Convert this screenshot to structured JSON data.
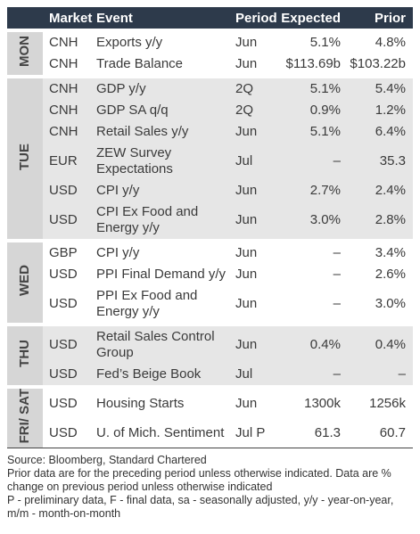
{
  "header": [
    "Market",
    "Event",
    "Period",
    "Expected",
    "Prior"
  ],
  "groups": [
    {
      "day": "MON",
      "rows": [
        [
          "CNH",
          "Exports y/y",
          "Jun",
          "5.1%",
          "4.8%"
        ],
        [
          "CNH",
          "Trade Balance",
          "Jun",
          "$113.69b",
          "$103.22b"
        ]
      ]
    },
    {
      "day": "TUE",
      "rows": [
        [
          "CNH",
          "GDP y/y",
          "2Q",
          "5.1%",
          "5.4%"
        ],
        [
          "CNH",
          "GDP SA q/q",
          "2Q",
          "0.9%",
          "1.2%"
        ],
        [
          "CNH",
          "Retail Sales y/y",
          "Jun",
          "5.1%",
          "6.4%"
        ],
        [
          "EUR",
          "ZEW Survey Expectations",
          "Jul",
          "–",
          "35.3"
        ],
        [
          "USD",
          "CPI y/y",
          "Jun",
          "2.7%",
          "2.4%"
        ],
        [
          "USD",
          "CPI Ex Food and Energy y/y",
          "Jun",
          "3.0%",
          "2.8%"
        ]
      ]
    },
    {
      "day": "WED",
      "rows": [
        [
          "GBP",
          "CPI y/y",
          "Jun",
          "–",
          "3.4%"
        ],
        [
          "USD",
          "PPI Final Demand y/y",
          "Jun",
          "–",
          "2.6%"
        ],
        [
          "USD",
          "PPI Ex Food and Energy y/y",
          "Jun",
          "–",
          "3.0%"
        ]
      ]
    },
    {
      "day": "THU",
      "rows": [
        [
          "USD",
          "Retail Sales Control Group",
          "Jun",
          "0.4%",
          "0.4%"
        ],
        [
          "USD",
          "Fed’s Beige Book",
          "Jul",
          "–",
          "–"
        ]
      ]
    },
    {
      "day": "FRI/ SAT",
      "rows": [
        [
          "USD",
          "Housing Starts",
          "Jun",
          "1300k",
          "1256k"
        ],
        [
          "USD",
          "U. of Mich. Sentiment",
          "Jul P",
          "61.3",
          "60.7"
        ]
      ]
    }
  ],
  "footnotes": [
    "Source: Bloomberg, Standard Chartered",
    "Prior data are for the preceding period unless otherwise indicated. Data are % change on previous period unless otherwise indicated",
    "P - preliminary data, F - final data, sa - seasonally adjusted, y/y - year-on-year, m/m - month-on-month"
  ]
}
